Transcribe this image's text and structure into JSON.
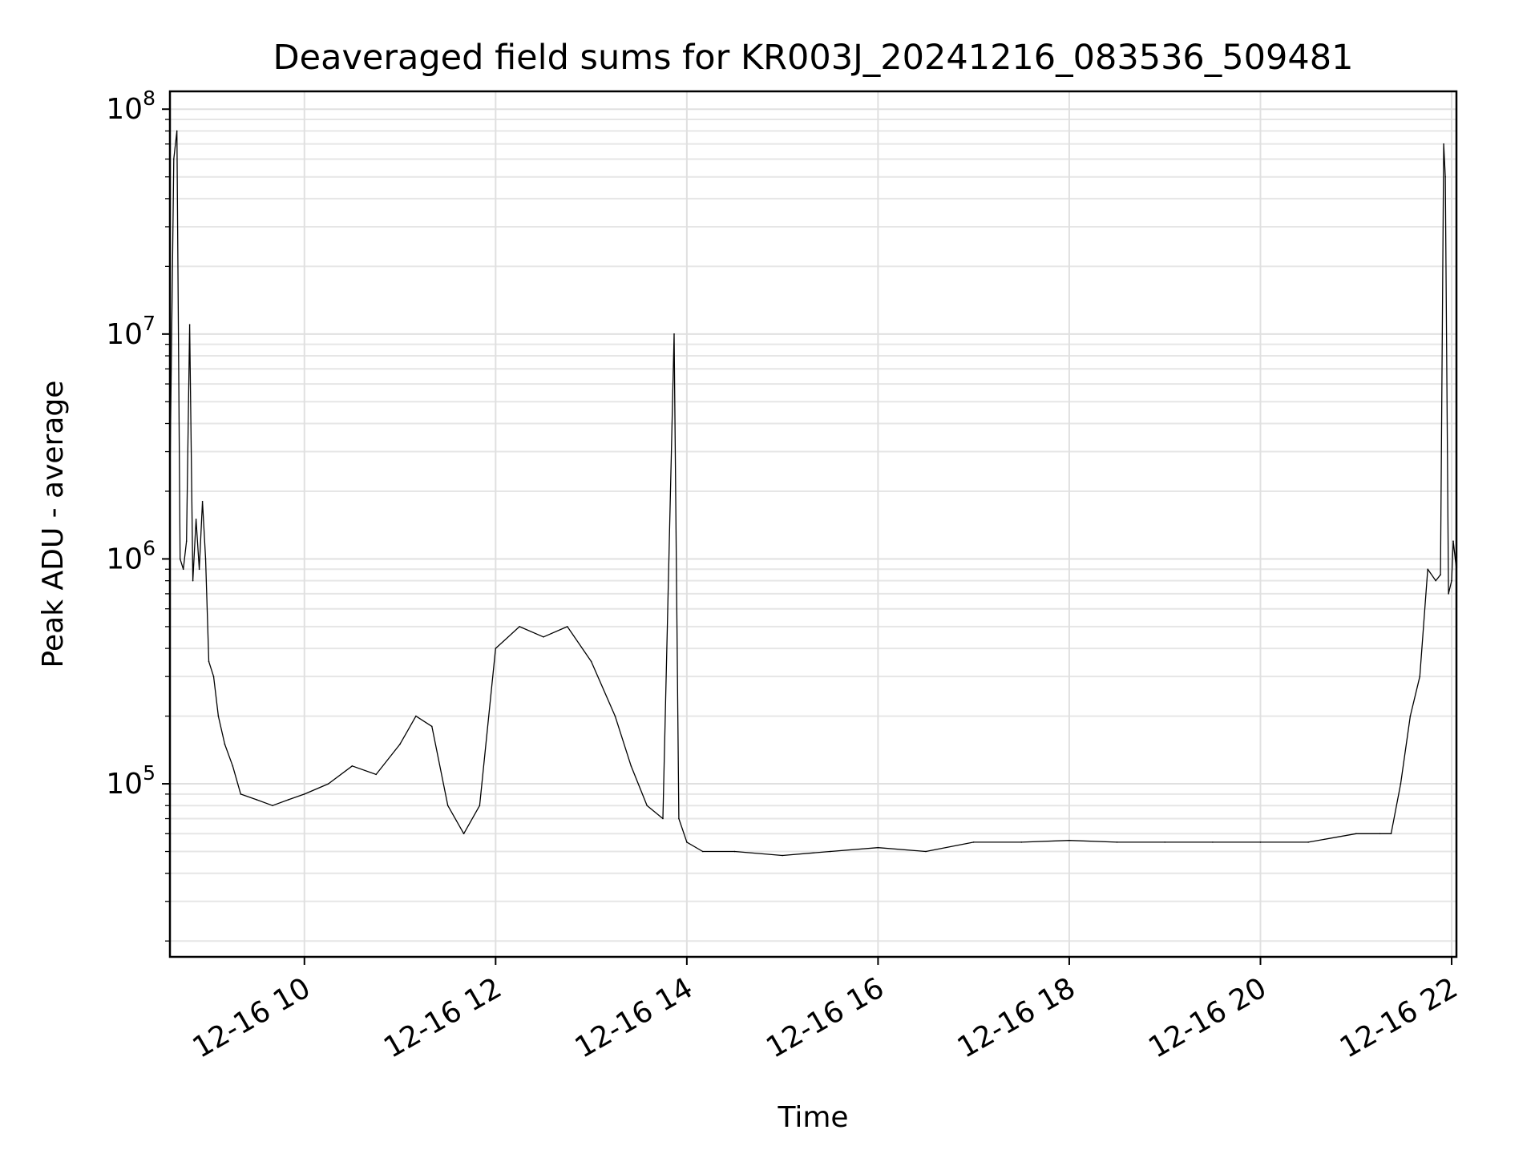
{
  "chart_data": {
    "type": "line",
    "title": "Deaveraged field sums for KR003J_20241216_083536_509481",
    "xlabel": "Time",
    "ylabel": "Peak ADU - average",
    "x_range": [
      "2024-12-16T08:35:36",
      "2024-12-16T22:03:00"
    ],
    "y_scale": "log",
    "ylim": [
      17000,
      120000000
    ],
    "grid": true,
    "x_ticks": [
      {
        "value": "2024-12-16T10:00",
        "label": "12-16 10"
      },
      {
        "value": "2024-12-16T12:00",
        "label": "12-16 12"
      },
      {
        "value": "2024-12-16T14:00",
        "label": "12-16 14"
      },
      {
        "value": "2024-12-16T16:00",
        "label": "12-16 16"
      },
      {
        "value": "2024-12-16T18:00",
        "label": "12-16 18"
      },
      {
        "value": "2024-12-16T20:00",
        "label": "12-16 20"
      },
      {
        "value": "2024-12-16T22:00",
        "label": "12-16 22"
      }
    ],
    "y_ticks": [
      {
        "value": 100000,
        "base": "10",
        "exp": "5"
      },
      {
        "value": 1000000,
        "base": "10",
        "exp": "6"
      },
      {
        "value": 10000000,
        "base": "10",
        "exp": "7"
      },
      {
        "value": 100000000,
        "base": "10",
        "exp": "8"
      }
    ],
    "series": [
      {
        "color": "#000000",
        "x": [
          "2024-12-16T08:35",
          "2024-12-16T08:38",
          "2024-12-16T08:40",
          "2024-12-16T08:42",
          "2024-12-16T08:44",
          "2024-12-16T08:46",
          "2024-12-16T08:48",
          "2024-12-16T08:50",
          "2024-12-16T08:52",
          "2024-12-16T08:54",
          "2024-12-16T08:56",
          "2024-12-16T08:58",
          "2024-12-16T09:00",
          "2024-12-16T09:03",
          "2024-12-16T09:06",
          "2024-12-16T09:10",
          "2024-12-16T09:15",
          "2024-12-16T09:20",
          "2024-12-16T09:30",
          "2024-12-16T09:40",
          "2024-12-16T09:50",
          "2024-12-16T10:00",
          "2024-12-16T10:15",
          "2024-12-16T10:30",
          "2024-12-16T10:45",
          "2024-12-16T11:00",
          "2024-12-16T11:10",
          "2024-12-16T11:20",
          "2024-12-16T11:30",
          "2024-12-16T11:40",
          "2024-12-16T11:50",
          "2024-12-16T12:00",
          "2024-12-16T12:15",
          "2024-12-16T12:30",
          "2024-12-16T12:45",
          "2024-12-16T13:00",
          "2024-12-16T13:15",
          "2024-12-16T13:25",
          "2024-12-16T13:35",
          "2024-12-16T13:45",
          "2024-12-16T13:52",
          "2024-12-16T13:55",
          "2024-12-16T14:00",
          "2024-12-16T14:10",
          "2024-12-16T14:30",
          "2024-12-16T15:00",
          "2024-12-16T15:30",
          "2024-12-16T16:00",
          "2024-12-16T16:30",
          "2024-12-16T17:00",
          "2024-12-16T17:30",
          "2024-12-16T18:00",
          "2024-12-16T18:30",
          "2024-12-16T19:00",
          "2024-12-16T19:30",
          "2024-12-16T20:00",
          "2024-12-16T20:30",
          "2024-12-16T21:00",
          "2024-12-16T21:15",
          "2024-12-16T21:22",
          "2024-12-16T21:28",
          "2024-12-16T21:34",
          "2024-12-16T21:40",
          "2024-12-16T21:45",
          "2024-12-16T21:50",
          "2024-12-16T21:53",
          "2024-12-16T21:55",
          "2024-12-16T21:56",
          "2024-12-16T21:58",
          "2024-12-16T22:00",
          "2024-12-16T22:01",
          "2024-12-16T22:03"
        ],
        "y": [
          1000000,
          60000000,
          80000000,
          1000000,
          900000,
          1200000,
          11000000,
          800000,
          1500000,
          900000,
          1800000,
          1000000,
          350000,
          300000,
          200000,
          150000,
          120000,
          90000,
          85000,
          80000,
          85000,
          90000,
          100000,
          120000,
          110000,
          150000,
          200000,
          180000,
          80000,
          60000,
          80000,
          400000,
          500000,
          450000,
          500000,
          350000,
          200000,
          120000,
          80000,
          70000,
          10000000,
          70000,
          55000,
          50000,
          50000,
          48000,
          50000,
          52000,
          50000,
          55000,
          55000,
          56000,
          55000,
          55000,
          55000,
          55000,
          55000,
          60000,
          60000,
          60000,
          100000,
          200000,
          300000,
          900000,
          800000,
          850000,
          70000000,
          50000000,
          700000,
          800000,
          1200000,
          900000
        ]
      }
    ]
  }
}
